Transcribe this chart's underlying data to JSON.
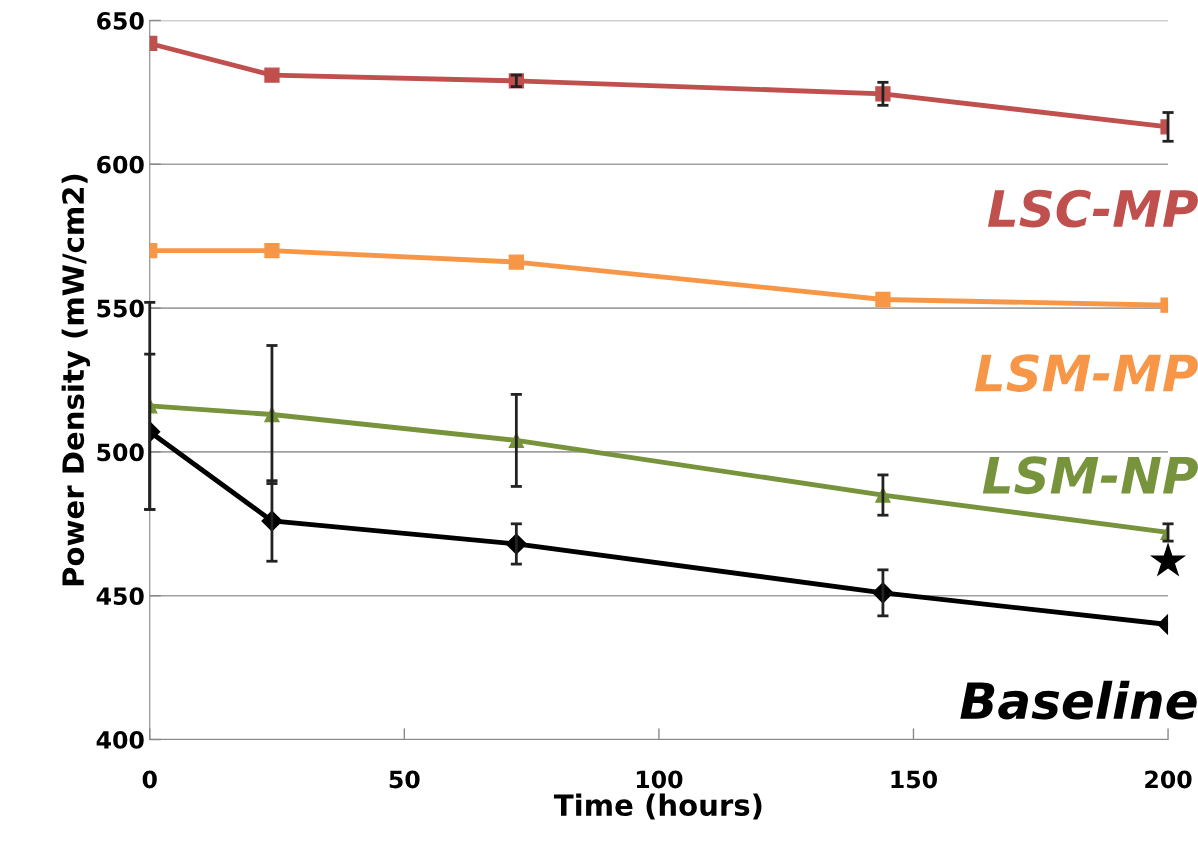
{
  "chart_data": {
    "type": "line",
    "xlabel": "Time (hours)",
    "ylabel": "Power Density (mW/cm2)",
    "xlim": [
      0,
      200
    ],
    "xticks": [
      0,
      50,
      100,
      150,
      200
    ],
    "ylim": [
      400,
      650
    ],
    "yticks": [
      400,
      450,
      500,
      550,
      600,
      650
    ],
    "grid": "y",
    "line_style": "solid",
    "series": [
      {
        "name": "LSC-MP",
        "color": "#c0504d",
        "marker": "square",
        "x": [
          0,
          24,
          72,
          144,
          200
        ],
        "values": [
          642,
          631,
          629,
          624.5,
          613
        ],
        "errors": [
          null,
          null,
          2,
          4,
          5
        ]
      },
      {
        "name": "LSM-MP",
        "color": "#f79646",
        "marker": "square",
        "x": [
          0,
          24,
          72,
          144,
          200
        ],
        "values": [
          570,
          570,
          566,
          553,
          551
        ]
      },
      {
        "name": "LSM-NP",
        "color": "#77933c",
        "marker": "triangle",
        "x": [
          0,
          24,
          72,
          144,
          200
        ],
        "values": [
          516,
          513,
          504,
          485,
          472
        ],
        "errors": [
          36,
          24,
          16,
          7,
          3
        ]
      },
      {
        "name": "Baseline",
        "color": "#000000",
        "marker": "diamond",
        "x": [
          0,
          24,
          72,
          144,
          200
        ],
        "values": [
          507,
          476,
          468,
          451,
          440
        ],
        "errors": [
          27,
          14,
          7,
          8,
          null
        ]
      }
    ],
    "annotations": [
      "★"
    ]
  }
}
